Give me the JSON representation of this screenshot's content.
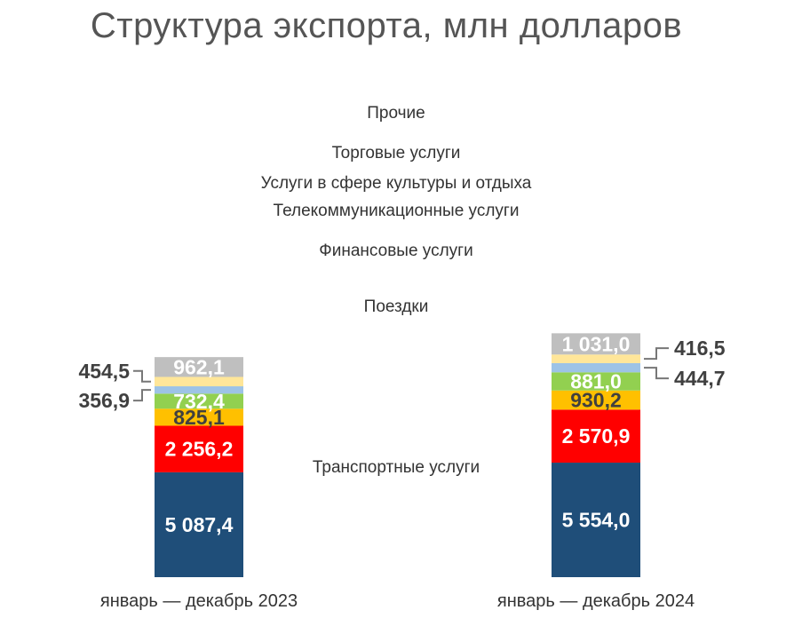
{
  "chart_data": {
    "type": "bar",
    "stacked": true,
    "title": "Структура экспорта, млн долларов",
    "categories": [
      "январь — декабрь 2023",
      "январь — декабрь 2024"
    ],
    "series": [
      {
        "name": "Транспортные услуги",
        "values": [
          5087.4,
          5554.0
        ],
        "labels": [
          "5 087,4",
          "5 554,0"
        ],
        "color": "#1F4E79",
        "text_color": "#FFFFFF"
      },
      {
        "name": "Поездки",
        "values": [
          2256.2,
          2570.9
        ],
        "labels": [
          "2 256,2",
          "2 570,9"
        ],
        "color": "#FF0000",
        "text_color": "#FFFFFF"
      },
      {
        "name": "Финансовые услуги",
        "values": [
          825.1,
          930.2
        ],
        "labels": [
          "825,1",
          "930,2"
        ],
        "color": "#FFC000",
        "text_color": "#404040"
      },
      {
        "name": "Телекоммуникационные услуги",
        "values": [
          732.4,
          881.0
        ],
        "labels": [
          "732,4",
          "881,0"
        ],
        "color": "#92D050",
        "text_color": "#FFFFFF"
      },
      {
        "name": "Услуги в сфере культуры и отдыха",
        "values": [
          356.9,
          444.7
        ],
        "labels": [
          "356,9",
          "444,7"
        ],
        "color": "#9DC3E6",
        "text_color": "#404040",
        "label_outside": true
      },
      {
        "name": "Торговые услуги",
        "values": [
          454.5,
          416.5
        ],
        "labels": [
          "454,5",
          "416,5"
        ],
        "color": "#FFE699",
        "text_color": "#404040",
        "label_outside": true
      },
      {
        "name": "Прочие",
        "values": [
          962.1,
          1031.0
        ],
        "labels": [
          "962,1",
          "1 031,0"
        ],
        "color": "#BFBFBF",
        "text_color": "#FFFFFF"
      }
    ],
    "legend": "center-between-bars",
    "grid": false
  }
}
